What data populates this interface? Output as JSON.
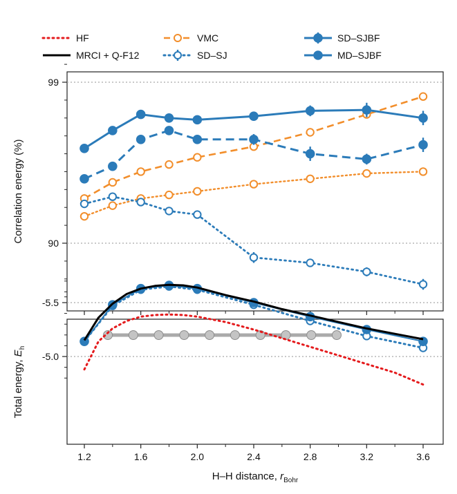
{
  "colors": {
    "hf": "#e41a1c",
    "mrci": "#000000",
    "vmc": "#f28e2b",
    "blue": "#2b7bb9",
    "grid": "#a8a8a8",
    "chain": "#b8b8b8"
  },
  "legend": [
    {
      "key": "hf",
      "label": "HF"
    },
    {
      "key": "mrci",
      "label": "MRCI + Q-F12"
    },
    {
      "key": "vmc",
      "label": "VMC"
    },
    {
      "key": "sdsj",
      "label": "SD–SJ"
    },
    {
      "key": "sdsjbf",
      "label": "SD–SJBF"
    },
    {
      "key": "mdsjbf",
      "label": "MD–SJBF"
    }
  ],
  "chart_data": [
    {
      "type": "line",
      "panel": "top",
      "ylabel": "Correlation energy (%)",
      "ylim": [
        86.2,
        100.0
      ],
      "yticks": [
        "90",
        "99"
      ],
      "xlim": [
        1.1,
        3.72
      ],
      "grid": "horizontal dotted at 90 and 99",
      "series": [
        {
          "name": "VMC",
          "x": [
            1.2,
            1.4,
            1.6,
            1.8,
            2.0,
            2.4,
            2.8,
            3.2,
            3.6
          ],
          "values": [
            92.5,
            93.4,
            94.0,
            94.4,
            94.8,
            95.4,
            96.2,
            97.2,
            98.2
          ]
        },
        {
          "name": "SD–SJ",
          "x": [
            1.2,
            1.4,
            1.6,
            1.8,
            2.0,
            2.4,
            2.8,
            3.2,
            3.6
          ],
          "values": [
            92.2,
            92.6,
            92.3,
            91.8,
            91.6,
            89.2,
            88.9,
            88.4,
            87.7
          ],
          "errors": [
            0.0,
            0.0,
            0.0,
            0.0,
            0.0,
            0.3,
            0.0,
            0.25,
            0.3
          ]
        },
        {
          "name": "SD–SJBF",
          "x": [
            1.2,
            1.4,
            1.6,
            1.8,
            2.0,
            2.4,
            2.8,
            3.2,
            3.6
          ],
          "values": [
            95.3,
            96.3,
            97.2,
            97.0,
            96.9,
            97.1,
            97.4,
            97.45,
            97.0
          ],
          "errors": [
            0.0,
            0.0,
            0.0,
            0.0,
            0.0,
            0.0,
            0.3,
            0.4,
            0.4
          ]
        },
        {
          "name": "MD–SJBF",
          "x": [
            1.2,
            1.4,
            1.6,
            1.8,
            2.0,
            2.4,
            2.8,
            3.2,
            3.6
          ],
          "values": [
            93.6,
            94.3,
            95.8,
            96.3,
            95.8,
            95.8,
            95.0,
            94.7,
            95.5
          ],
          "errors": [
            0.0,
            0.0,
            0.0,
            0.0,
            0.0,
            0.3,
            0.4,
            0.3,
            0.4
          ]
        },
        {
          "name": "HF",
          "x": [
            1.2,
            1.4,
            1.6,
            1.8,
            2.0,
            2.4,
            2.8,
            3.2,
            3.6
          ],
          "values": [
            91.5,
            92.1,
            92.5,
            92.7,
            92.9,
            93.3,
            93.6,
            93.9,
            94.0
          ]
        }
      ]
    },
    {
      "type": "line",
      "panel": "bottom",
      "ylabel": "Total energy, E_h",
      "xlabel": "H–H distance, r_Bohr",
      "xticks": [
        "1.2",
        "1.6",
        "2.0",
        "2.4",
        "2.8",
        "3.2",
        "3.6"
      ],
      "xlim": [
        1.1,
        3.72
      ],
      "ylim": [
        -5.79,
        -4.69
      ],
      "yticks": [
        "-5.0",
        "-5.5"
      ],
      "grid": "horizontal dotted at -5.0 and -5.5",
      "series": [
        {
          "name": "HF",
          "x": [
            1.2,
            1.3,
            1.4,
            1.5,
            1.6,
            1.7,
            1.8,
            1.9,
            2.0,
            2.2,
            2.4,
            2.6,
            2.8,
            3.0,
            3.2,
            3.4,
            3.6
          ],
          "values": [
            -4.88,
            -5.14,
            -5.26,
            -5.33,
            -5.37,
            -5.385,
            -5.39,
            -5.385,
            -5.37,
            -5.32,
            -5.25,
            -5.17,
            -5.09,
            -5.01,
            -4.93,
            -4.85,
            -4.74
          ]
        },
        {
          "name": "MRCI + Q-F12",
          "x": [
            1.2,
            1.3,
            1.4,
            1.5,
            1.6,
            1.7,
            1.8,
            1.9,
            2.0,
            2.2,
            2.4,
            2.6,
            2.8,
            3.0,
            3.2,
            3.4,
            3.6
          ],
          "values": [
            -5.15,
            -5.36,
            -5.49,
            -5.58,
            -5.63,
            -5.655,
            -5.665,
            -5.66,
            -5.64,
            -5.57,
            -5.51,
            -5.44,
            -5.38,
            -5.32,
            -5.26,
            -5.21,
            -5.16
          ]
        },
        {
          "name": "SD–SJ",
          "x": [
            1.2,
            1.4,
            1.6,
            1.8,
            2.0,
            2.4,
            2.8,
            3.2,
            3.6
          ],
          "values": [
            -5.14,
            -5.47,
            -5.62,
            -5.65,
            -5.62,
            -5.48,
            -5.33,
            -5.19,
            -5.08
          ]
        },
        {
          "name": "SD–SJBF",
          "x": [
            1.2,
            1.4,
            1.6,
            1.8,
            2.0,
            2.4,
            2.8,
            3.2,
            3.6
          ],
          "values": [
            -5.14,
            -5.48,
            -5.63,
            -5.66,
            -5.63,
            -5.5,
            -5.37,
            -5.25,
            -5.14
          ]
        }
      ]
    }
  ]
}
